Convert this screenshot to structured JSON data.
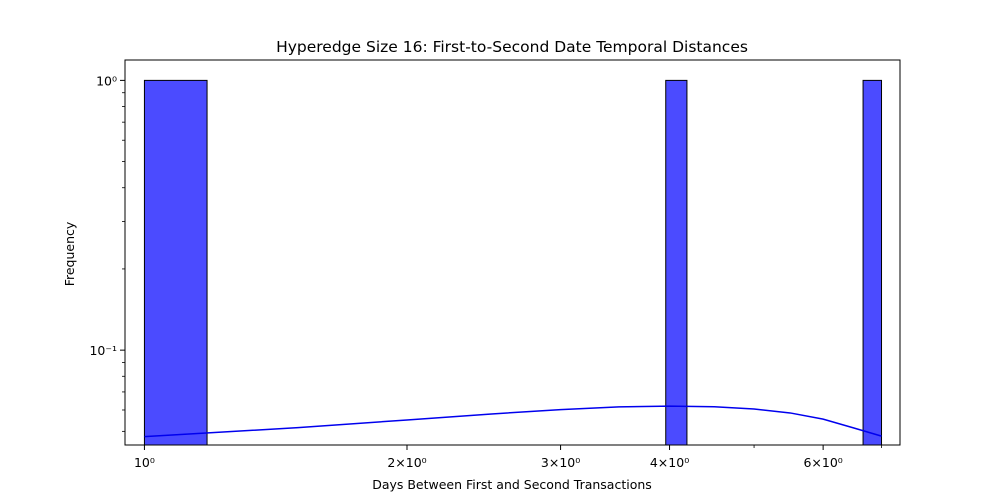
{
  "chart_data": {
    "type": "bar",
    "title": "Hyperedge Size 16: First-to-Second Date Temporal Distances",
    "xlabel": "Days Between First and Second Transactions",
    "ylabel": "Frequency",
    "x_scale": "log",
    "y_scale": "log",
    "xlim": [
      0.95,
      7.35
    ],
    "ylim": [
      0.0445,
      1.19
    ],
    "x_ticks": [
      {
        "value": 1,
        "label": "10⁰"
      },
      {
        "value": 2,
        "label": "2×10⁰"
      },
      {
        "value": 3,
        "label": "3×10⁰"
      },
      {
        "value": 4,
        "label": "4×10⁰"
      },
      {
        "value": 6,
        "label": "6×10⁰"
      }
    ],
    "x_minor_ticks": [
      5,
      7
    ],
    "y_ticks": [
      {
        "value": 0.1,
        "label": "10⁻¹"
      },
      {
        "value": 1,
        "label": "10⁰"
      }
    ],
    "y_minor_ticks": [
      0.05,
      0.06,
      0.07,
      0.08,
      0.09,
      0.2,
      0.3,
      0.4,
      0.5,
      0.6,
      0.7,
      0.8,
      0.9
    ],
    "bins": [
      {
        "x0": 1.0,
        "x1": 1.1798,
        "count": 1
      },
      {
        "x0": 3.96,
        "x1": 4.188,
        "count": 1
      },
      {
        "x0": 6.667,
        "x1": 7.0,
        "count": 1
      }
    ],
    "kde": {
      "x": [
        1.0,
        1.5,
        2.0,
        2.5,
        3.0,
        3.5,
        4.0,
        4.5,
        5.0,
        5.5,
        6.0,
        6.5,
        7.0
      ],
      "y": [
        0.0478,
        0.0516,
        0.0551,
        0.058,
        0.0602,
        0.0616,
        0.062,
        0.0617,
        0.0605,
        0.0585,
        0.0555,
        0.0515,
        0.048
      ]
    },
    "colors": {
      "bar_fill": "#4b4bff",
      "bar_edge": "#000000",
      "kde_line": "#0000ee"
    },
    "grid": false,
    "legend": "none"
  }
}
